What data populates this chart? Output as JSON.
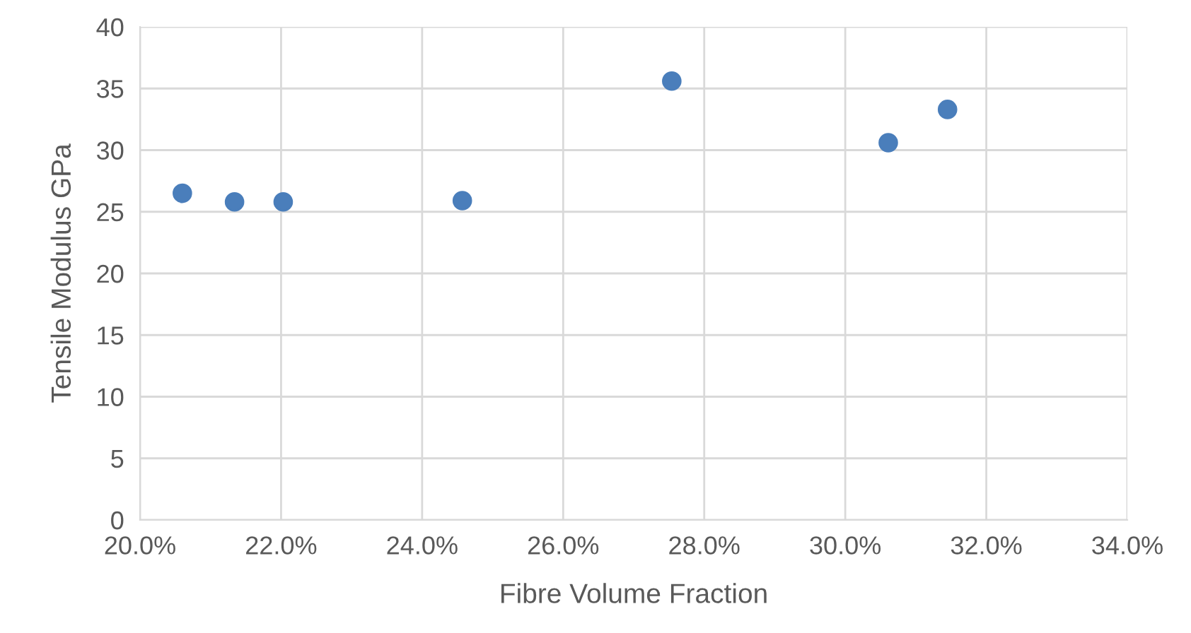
{
  "chart_data": {
    "type": "scatter",
    "xlabel": "Fibre Volume Fraction",
    "ylabel": "Tensile Modulus GPa",
    "x": [
      20.6,
      21.34,
      22.03,
      24.57,
      27.54,
      30.61,
      31.45
    ],
    "series": [
      {
        "color": "#4a7ebb",
        "values": [
          26.5,
          25.8,
          25.8,
          25.9,
          35.6,
          30.6,
          33.3
        ]
      }
    ],
    "xlim": [
      20,
      34
    ],
    "ylim": [
      0,
      40
    ],
    "xticks": [
      {
        "value": 20,
        "label": "20.0%"
      },
      {
        "value": 22,
        "label": "22.0%"
      },
      {
        "value": 24,
        "label": "24.0%"
      },
      {
        "value": 26,
        "label": "26.0%"
      },
      {
        "value": 28,
        "label": "28.0%"
      },
      {
        "value": 30,
        "label": "30.0%"
      },
      {
        "value": 32,
        "label": "32.0%"
      },
      {
        "value": 34,
        "label": "34.0%"
      }
    ],
    "yticks": [
      0,
      5,
      10,
      15,
      20,
      25,
      30,
      35,
      40
    ],
    "grid": true,
    "marker": "circle"
  }
}
